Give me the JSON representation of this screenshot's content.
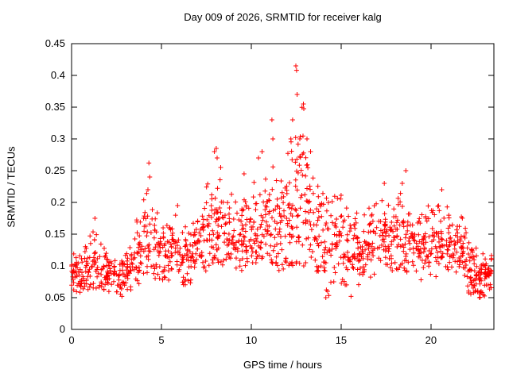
{
  "window": {
    "background": "#ffffff"
  },
  "chart_data": {
    "type": "scatter",
    "title": "Day 009 of 2026, SRMTID for receiver kalg",
    "xlabel": "GPS time / hours",
    "ylabel": "SRMTID / TECUs",
    "xlim": [
      0,
      23.5
    ],
    "ylim": [
      0,
      0.45
    ],
    "xticks": [
      0,
      5,
      10,
      15,
      20
    ],
    "xtick_labels": [
      "0",
      "5",
      "10",
      "15",
      "20"
    ],
    "yticks": [
      0,
      0.05,
      0.1,
      0.15,
      0.2,
      0.25,
      0.3,
      0.35,
      0.4,
      0.45
    ],
    "ytick_labels": [
      "0",
      "0.05",
      "0.1",
      "0.15",
      "0.2",
      "0.25",
      "0.3",
      "0.35",
      "0.4",
      "0.45"
    ],
    "grid": false,
    "legend": "none",
    "marker": "plus",
    "marker_color": "#ff0000",
    "marker_size": 3,
    "bins_format": [
      "x_start",
      "x_end",
      "y_min",
      "y_max",
      "y_center",
      "count"
    ],
    "density_bins": [
      [
        0.0,
        0.5,
        0.055,
        0.135,
        0.085,
        36
      ],
      [
        0.5,
        1.0,
        0.06,
        0.15,
        0.09,
        32
      ],
      [
        1.0,
        1.5,
        0.06,
        0.18,
        0.1,
        30
      ],
      [
        1.5,
        2.0,
        0.06,
        0.155,
        0.095,
        30
      ],
      [
        2.0,
        2.5,
        0.055,
        0.13,
        0.09,
        30
      ],
      [
        2.5,
        3.0,
        0.05,
        0.125,
        0.08,
        30
      ],
      [
        3.0,
        3.5,
        0.06,
        0.16,
        0.1,
        30
      ],
      [
        3.5,
        4.0,
        0.07,
        0.2,
        0.12,
        30
      ],
      [
        4.0,
        4.5,
        0.08,
        0.265,
        0.14,
        30
      ],
      [
        4.5,
        5.0,
        0.08,
        0.235,
        0.13,
        30
      ],
      [
        5.0,
        5.5,
        0.07,
        0.19,
        0.12,
        30
      ],
      [
        5.5,
        6.0,
        0.08,
        0.195,
        0.13,
        30
      ],
      [
        6.0,
        6.5,
        0.065,
        0.18,
        0.11,
        30
      ],
      [
        6.5,
        7.0,
        0.07,
        0.19,
        0.12,
        30
      ],
      [
        7.0,
        7.5,
        0.09,
        0.21,
        0.14,
        30
      ],
      [
        7.5,
        8.0,
        0.1,
        0.28,
        0.15,
        32
      ],
      [
        8.0,
        8.5,
        0.1,
        0.27,
        0.16,
        32
      ],
      [
        8.5,
        9.0,
        0.1,
        0.24,
        0.15,
        30
      ],
      [
        9.0,
        9.5,
        0.09,
        0.25,
        0.14,
        30
      ],
      [
        9.5,
        10.0,
        0.1,
        0.25,
        0.15,
        30
      ],
      [
        10.0,
        10.5,
        0.1,
        0.28,
        0.15,
        32
      ],
      [
        10.5,
        11.0,
        0.11,
        0.28,
        0.16,
        32
      ],
      [
        11.0,
        11.5,
        0.1,
        0.33,
        0.17,
        32
      ],
      [
        11.5,
        12.0,
        0.09,
        0.3,
        0.16,
        32
      ],
      [
        12.0,
        12.5,
        0.1,
        0.36,
        0.18,
        34
      ],
      [
        12.5,
        13.0,
        0.1,
        0.42,
        0.2,
        34
      ],
      [
        13.0,
        13.5,
        0.1,
        0.33,
        0.18,
        32
      ],
      [
        13.5,
        14.0,
        0.09,
        0.28,
        0.16,
        30
      ],
      [
        14.0,
        14.5,
        0.05,
        0.24,
        0.14,
        30
      ],
      [
        14.5,
        15.0,
        0.06,
        0.23,
        0.13,
        30
      ],
      [
        15.0,
        15.5,
        0.07,
        0.22,
        0.13,
        30
      ],
      [
        15.5,
        16.0,
        0.05,
        0.21,
        0.13,
        30
      ],
      [
        16.0,
        16.5,
        0.08,
        0.2,
        0.13,
        30
      ],
      [
        16.5,
        17.0,
        0.08,
        0.21,
        0.14,
        30
      ],
      [
        17.0,
        17.5,
        0.08,
        0.23,
        0.14,
        30
      ],
      [
        17.5,
        18.0,
        0.09,
        0.22,
        0.15,
        30
      ],
      [
        18.0,
        18.5,
        0.08,
        0.25,
        0.14,
        30
      ],
      [
        18.5,
        19.0,
        0.09,
        0.24,
        0.15,
        30
      ],
      [
        19.0,
        19.5,
        0.07,
        0.2,
        0.13,
        30
      ],
      [
        19.5,
        20.0,
        0.08,
        0.21,
        0.13,
        30
      ],
      [
        20.0,
        20.5,
        0.08,
        0.22,
        0.14,
        30
      ],
      [
        20.5,
        21.0,
        0.09,
        0.21,
        0.14,
        30
      ],
      [
        21.0,
        21.5,
        0.08,
        0.2,
        0.13,
        30
      ],
      [
        21.5,
        22.0,
        0.07,
        0.19,
        0.13,
        34
      ],
      [
        22.0,
        22.5,
        0.05,
        0.15,
        0.09,
        40
      ],
      [
        22.5,
        23.0,
        0.05,
        0.14,
        0.085,
        40
      ],
      [
        23.0,
        23.4,
        0.06,
        0.13,
        0.09,
        30
      ]
    ],
    "notable_points": [
      [
        1.3,
        0.175
      ],
      [
        2.8,
        0.052
      ],
      [
        4.25,
        0.22
      ],
      [
        4.3,
        0.262
      ],
      [
        4.35,
        0.24
      ],
      [
        5.9,
        0.195
      ],
      [
        7.95,
        0.28
      ],
      [
        8.05,
        0.285
      ],
      [
        8.1,
        0.27
      ],
      [
        8.3,
        0.255
      ],
      [
        9.6,
        0.245
      ],
      [
        10.4,
        0.27
      ],
      [
        10.6,
        0.28
      ],
      [
        11.15,
        0.33
      ],
      [
        11.2,
        0.3
      ],
      [
        12.2,
        0.3
      ],
      [
        12.3,
        0.33
      ],
      [
        12.48,
        0.415
      ],
      [
        12.52,
        0.408
      ],
      [
        12.55,
        0.37
      ],
      [
        12.7,
        0.3
      ],
      [
        12.9,
        0.355
      ],
      [
        13.1,
        0.3
      ],
      [
        13.3,
        0.28
      ],
      [
        14.15,
        0.05
      ],
      [
        14.25,
        0.06
      ],
      [
        15.55,
        0.052
      ],
      [
        17.4,
        0.23
      ],
      [
        18.4,
        0.23
      ],
      [
        18.6,
        0.25
      ],
      [
        20.6,
        0.22
      ],
      [
        22.7,
        0.05
      ]
    ]
  }
}
